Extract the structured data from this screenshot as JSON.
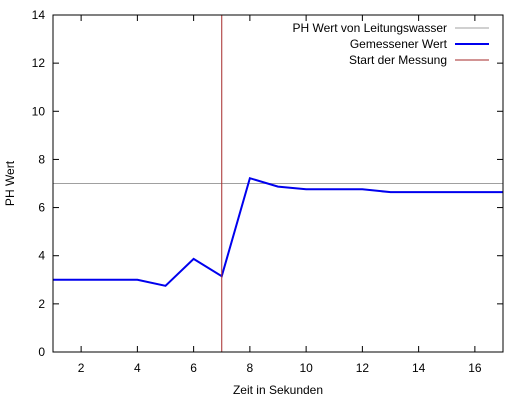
{
  "chart_data": {
    "type": "line",
    "xlabel": "Zeit in Sekunden",
    "ylabel": "PH Wert",
    "xlim": [
      1,
      17
    ],
    "ylim": [
      0,
      14
    ],
    "xticks": [
      2,
      4,
      6,
      8,
      10,
      12,
      14,
      16
    ],
    "yticks": [
      0,
      2,
      4,
      6,
      8,
      10,
      12,
      14
    ],
    "grid": false,
    "legend_position": "top-right",
    "series": [
      {
        "name": "PH Wert von Leitungswasser",
        "kind": "hline",
        "color": "#a0a0a0",
        "y": 7
      },
      {
        "name": "Gemessener Wert",
        "kind": "line",
        "color": "#0000ee",
        "x": [
          1,
          2,
          3,
          4,
          5,
          6,
          7,
          8,
          9,
          10,
          11,
          12,
          13,
          14,
          15,
          16,
          17
        ],
        "y": [
          3.0,
          3.0,
          3.0,
          3.0,
          2.75,
          3.87,
          3.15,
          7.22,
          6.87,
          6.76,
          6.76,
          6.76,
          6.64,
          6.64,
          6.64,
          6.64,
          6.64
        ]
      },
      {
        "name": "Start der Messung",
        "kind": "vline",
        "color": "#a52a2a",
        "x": 7
      }
    ]
  }
}
